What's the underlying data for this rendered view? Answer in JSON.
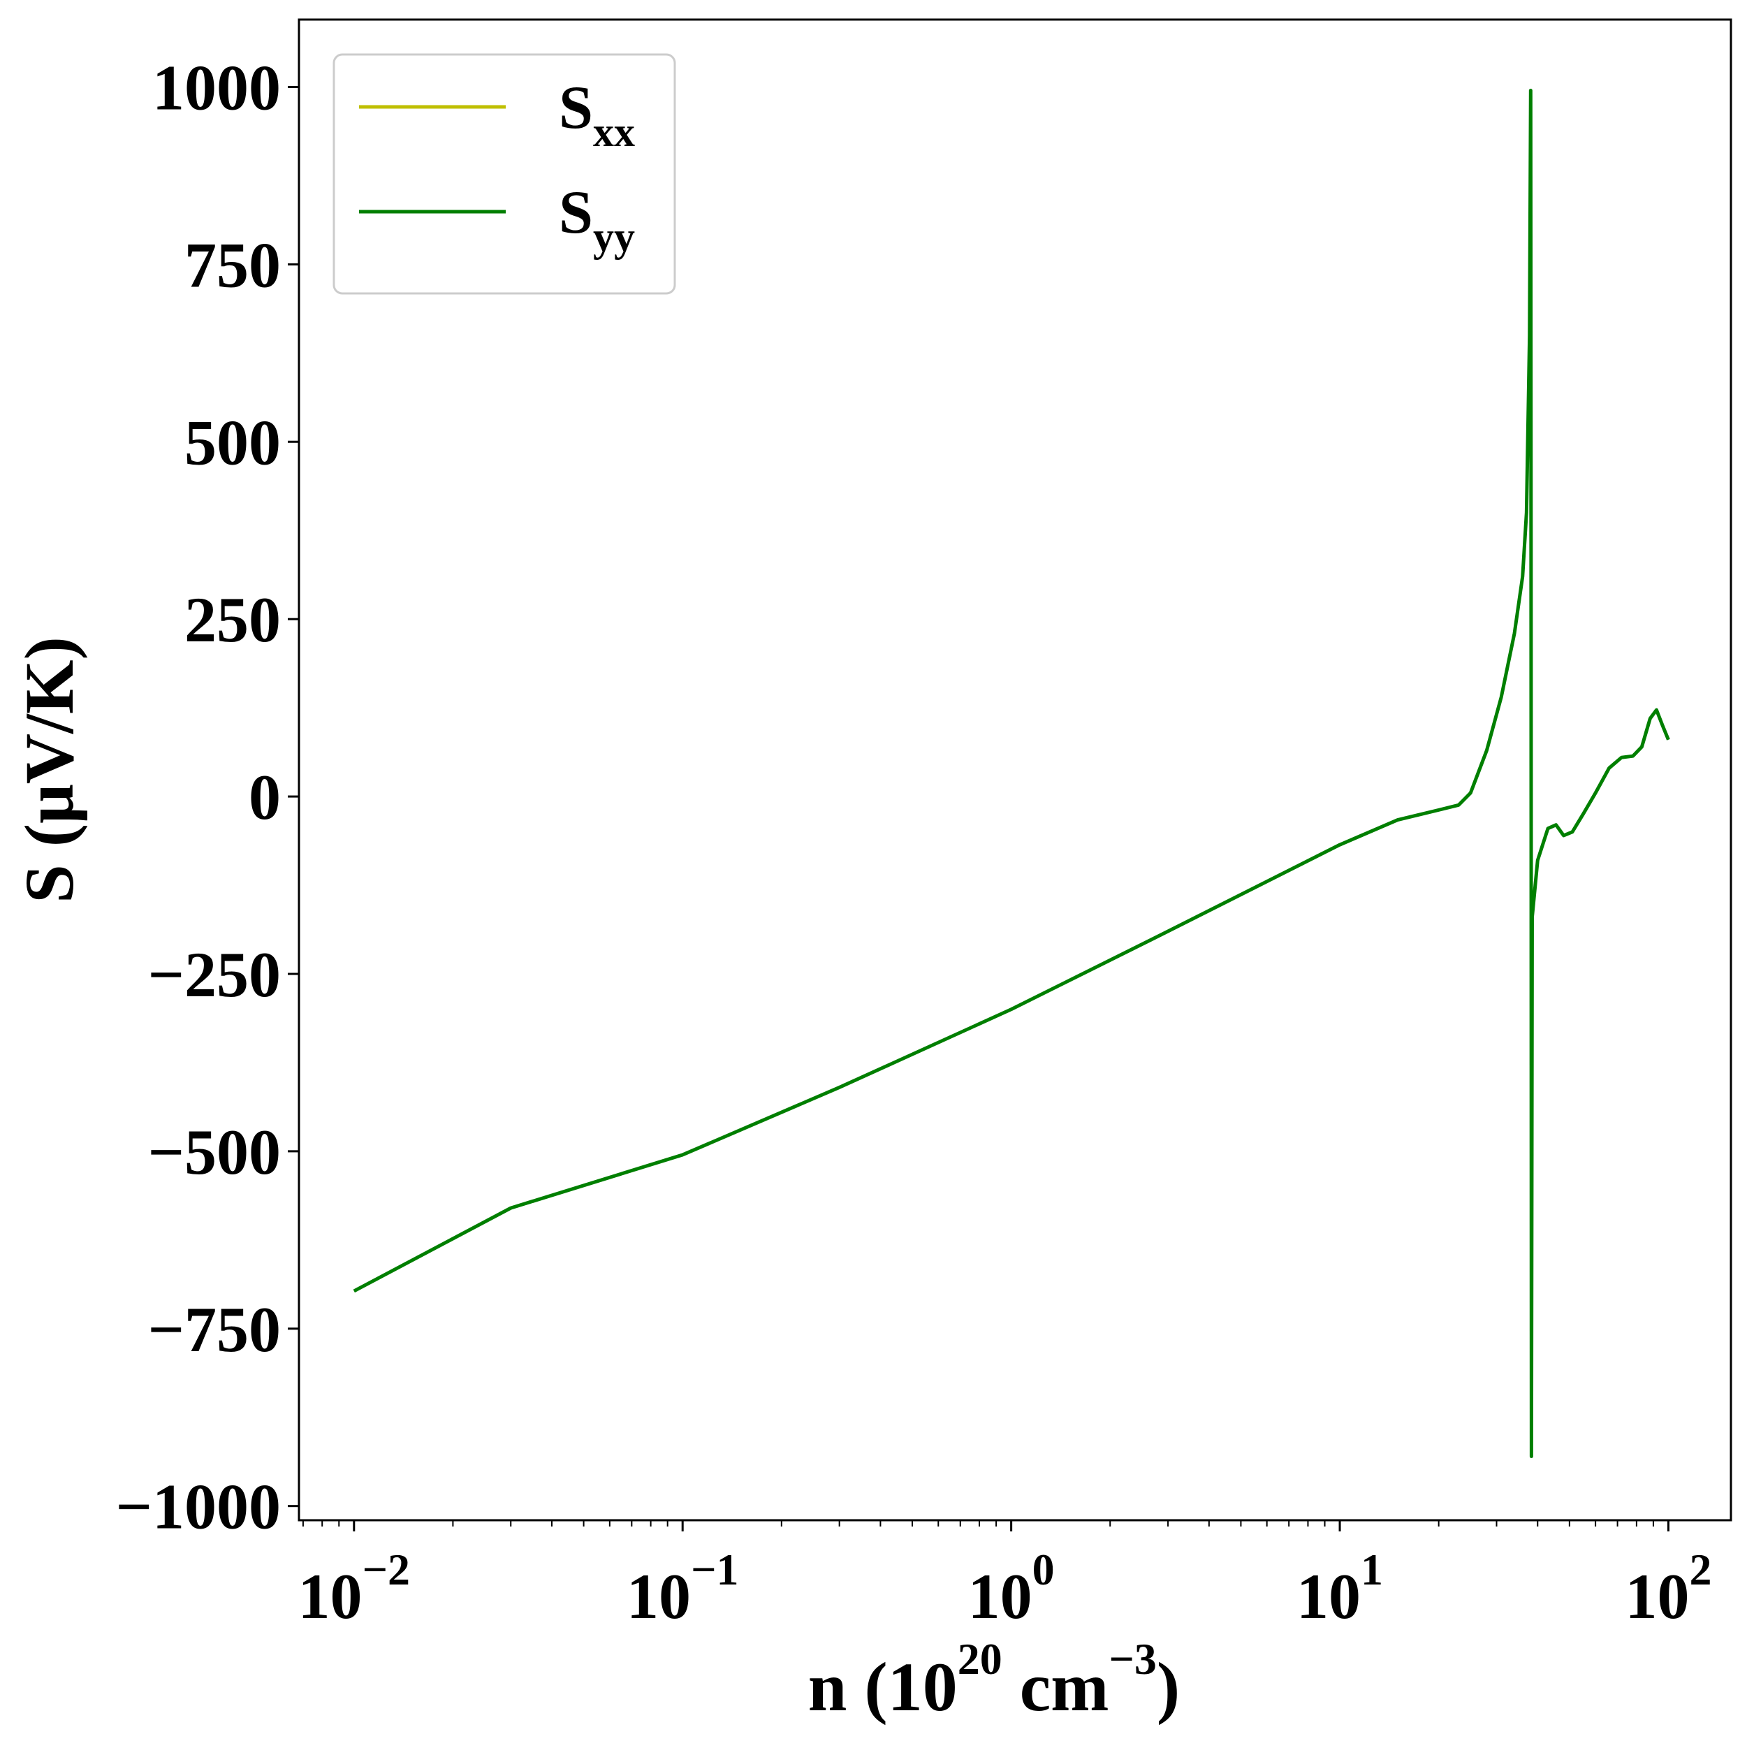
{
  "chart_data": {
    "type": "line",
    "xscale": "log",
    "xlim": [
      0.0068,
      155
    ],
    "ylim": [
      -1020,
      1095
    ],
    "grid": false,
    "legend_position": "upper-left",
    "xlabel": {
      "base": "n (10",
      "exp1": "20",
      "mid": " cm",
      "exp2": "−3",
      "end": ")"
    },
    "ylabel": "S (μV/K)",
    "x_ticks": [
      {
        "value": 0.01,
        "base": "10",
        "exp": "−2"
      },
      {
        "value": 0.1,
        "base": "10",
        "exp": "−1"
      },
      {
        "value": 1,
        "base": "10",
        "exp": "0"
      },
      {
        "value": 10,
        "base": "10",
        "exp": "1"
      },
      {
        "value": 100,
        "base": "10",
        "exp": "2"
      }
    ],
    "y_ticks": [
      {
        "value": 1000,
        "label": "1000"
      },
      {
        "value": 750,
        "label": "750"
      },
      {
        "value": 500,
        "label": "500"
      },
      {
        "value": 250,
        "label": "250"
      },
      {
        "value": 0,
        "label": "0"
      },
      {
        "value": -250,
        "label": "−250"
      },
      {
        "value": -500,
        "label": "−500"
      },
      {
        "value": -750,
        "label": "−750"
      },
      {
        "value": -1000,
        "label": "−1000"
      }
    ],
    "series": [
      {
        "name": "S",
        "name_sub": "xx",
        "color": "#bfbf00",
        "x": [],
        "y": []
      },
      {
        "name": "S",
        "name_sub": "yy",
        "color": "#007f00",
        "x": [
          0.01,
          0.03,
          0.1,
          0.3,
          1,
          3,
          10,
          15,
          20,
          23,
          25,
          28,
          31,
          34,
          36,
          37,
          37.8,
          38.1,
          38.2,
          38.3,
          38.5,
          40,
          43,
          45.5,
          48,
          51,
          55,
          60,
          66,
          72,
          78,
          83,
          88,
          92,
          96,
          100
        ],
        "y": [
          -697,
          -580,
          -505,
          -410,
          -300,
          -190,
          -68,
          -33,
          -19,
          -12,
          5,
          65,
          140,
          230,
          310,
          400,
          650,
          995,
          350,
          -930,
          -170,
          -90,
          -45,
          -40,
          -55,
          -50,
          -25,
          5,
          40,
          55,
          57,
          70,
          110,
          122,
          100,
          80
        ]
      }
    ]
  }
}
